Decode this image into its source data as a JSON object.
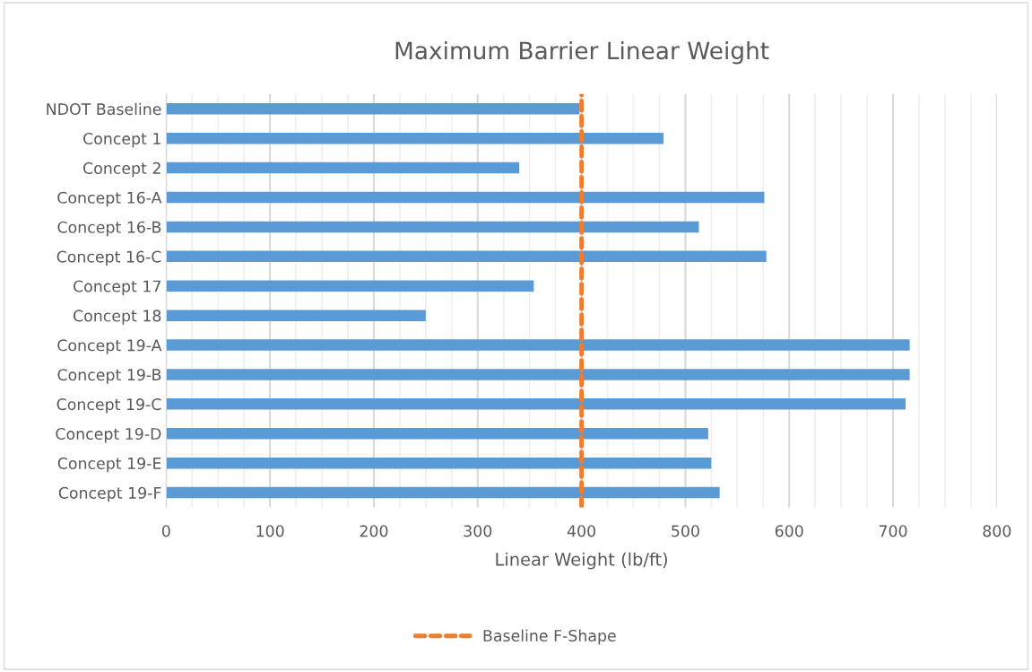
{
  "chart_data": {
    "type": "bar",
    "orientation": "horizontal",
    "title": "Maximum Barrier Linear Weight",
    "xlabel": "Linear Weight (lb/ft)",
    "categories": [
      "NDOT Baseline",
      "Concept 1",
      "Concept 2",
      "Concept 16-A",
      "Concept 16-B",
      "Concept 16-C",
      "Concept 17",
      "Concept 18",
      "Concept 19-A",
      "Concept 19-B",
      "Concept 19-C",
      "Concept 19-D",
      "Concept 19-E",
      "Concept 19-F"
    ],
    "values": [
      398,
      479,
      340,
      576,
      513,
      578,
      354,
      250,
      716,
      716,
      712,
      522,
      525,
      533
    ],
    "color": "#5b9bd5",
    "xlim": [
      0,
      800
    ],
    "xticks": [
      0,
      {
        "value": 25,
        "label": null
      },
      {
        "value": 50,
        "label": null
      },
      {
        "value": 75,
        "label": null
      },
      100,
      {
        "value": 125,
        "label": null
      },
      {
        "value": 150,
        "label": null
      },
      {
        "value": 175,
        "label": null
      },
      200,
      {
        "value": 225,
        "label": null
      },
      {
        "value": 250,
        "label": null
      },
      {
        "value": 275,
        "label": null
      },
      300,
      {
        "value": 325,
        "label": null
      },
      {
        "value": 350,
        "label": null
      },
      {
        "value": 375,
        "label": null
      },
      400,
      {
        "value": 425,
        "label": null
      },
      {
        "value": 450,
        "label": null
      },
      {
        "value": 475,
        "label": null
      },
      500,
      {
        "value": 525,
        "label": null
      },
      {
        "value": 550,
        "label": null
      },
      {
        "value": 575,
        "label": null
      },
      600,
      {
        "value": 625,
        "label": null
      },
      {
        "value": 650,
        "label": null
      },
      {
        "value": 675,
        "label": null
      },
      700,
      {
        "value": 725,
        "label": null
      },
      {
        "value": 750,
        "label": null
      },
      {
        "value": 775,
        "label": null
      },
      800
    ],
    "grid": "x",
    "ref_lines": [
      {
        "axis": "x",
        "value": 400,
        "label": "Baseline F-Shape",
        "color": "#ed7d31",
        "line_style": "dashed"
      }
    ],
    "legend": "bottom"
  }
}
